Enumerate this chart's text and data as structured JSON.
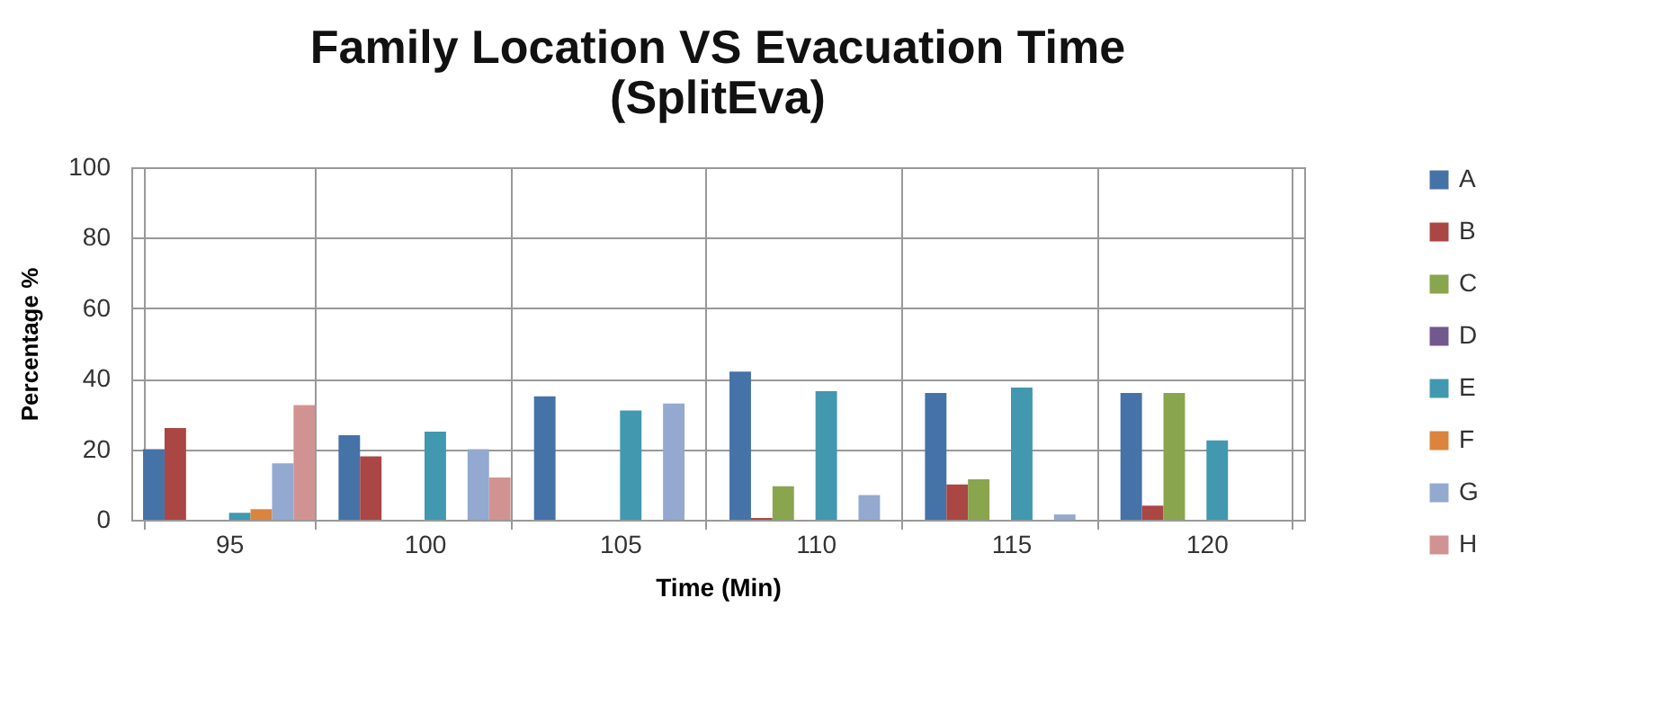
{
  "chart_data": {
    "type": "bar",
    "title": "Family Location VS Evacuation Time\n(SplitEva)",
    "xlabel": "Time (Min)",
    "ylabel": "Percentage %",
    "categories": [
      "95",
      "100",
      "105",
      "110",
      "115",
      "120"
    ],
    "series": [
      {
        "name": "A",
        "color": "#4572a7",
        "values": [
          20,
          24,
          35,
          42,
          36,
          36
        ]
      },
      {
        "name": "B",
        "color": "#aa4643",
        "values": [
          26,
          18,
          null,
          0.5,
          10,
          4
        ]
      },
      {
        "name": "C",
        "color": "#89a54e",
        "values": [
          null,
          null,
          null,
          9.5,
          11.5,
          36
        ]
      },
      {
        "name": "D",
        "color": "#71588f",
        "values": [
          null,
          null,
          null,
          null,
          null,
          null
        ]
      },
      {
        "name": "E",
        "color": "#4198af",
        "values": [
          2,
          25,
          31,
          36.5,
          37.5,
          22.5
        ]
      },
      {
        "name": "F",
        "color": "#db843d",
        "values": [
          3,
          null,
          null,
          null,
          null,
          null
        ]
      },
      {
        "name": "G",
        "color": "#93a9cf",
        "values": [
          16,
          20,
          33,
          7,
          1.5,
          null
        ]
      },
      {
        "name": "H",
        "color": "#d19392",
        "values": [
          32.5,
          12,
          null,
          null,
          null,
          null
        ]
      }
    ],
    "ylim": [
      0,
      100
    ],
    "yticks": [
      0,
      20,
      40,
      60,
      80,
      100
    ],
    "grid": true,
    "legend": "right"
  }
}
